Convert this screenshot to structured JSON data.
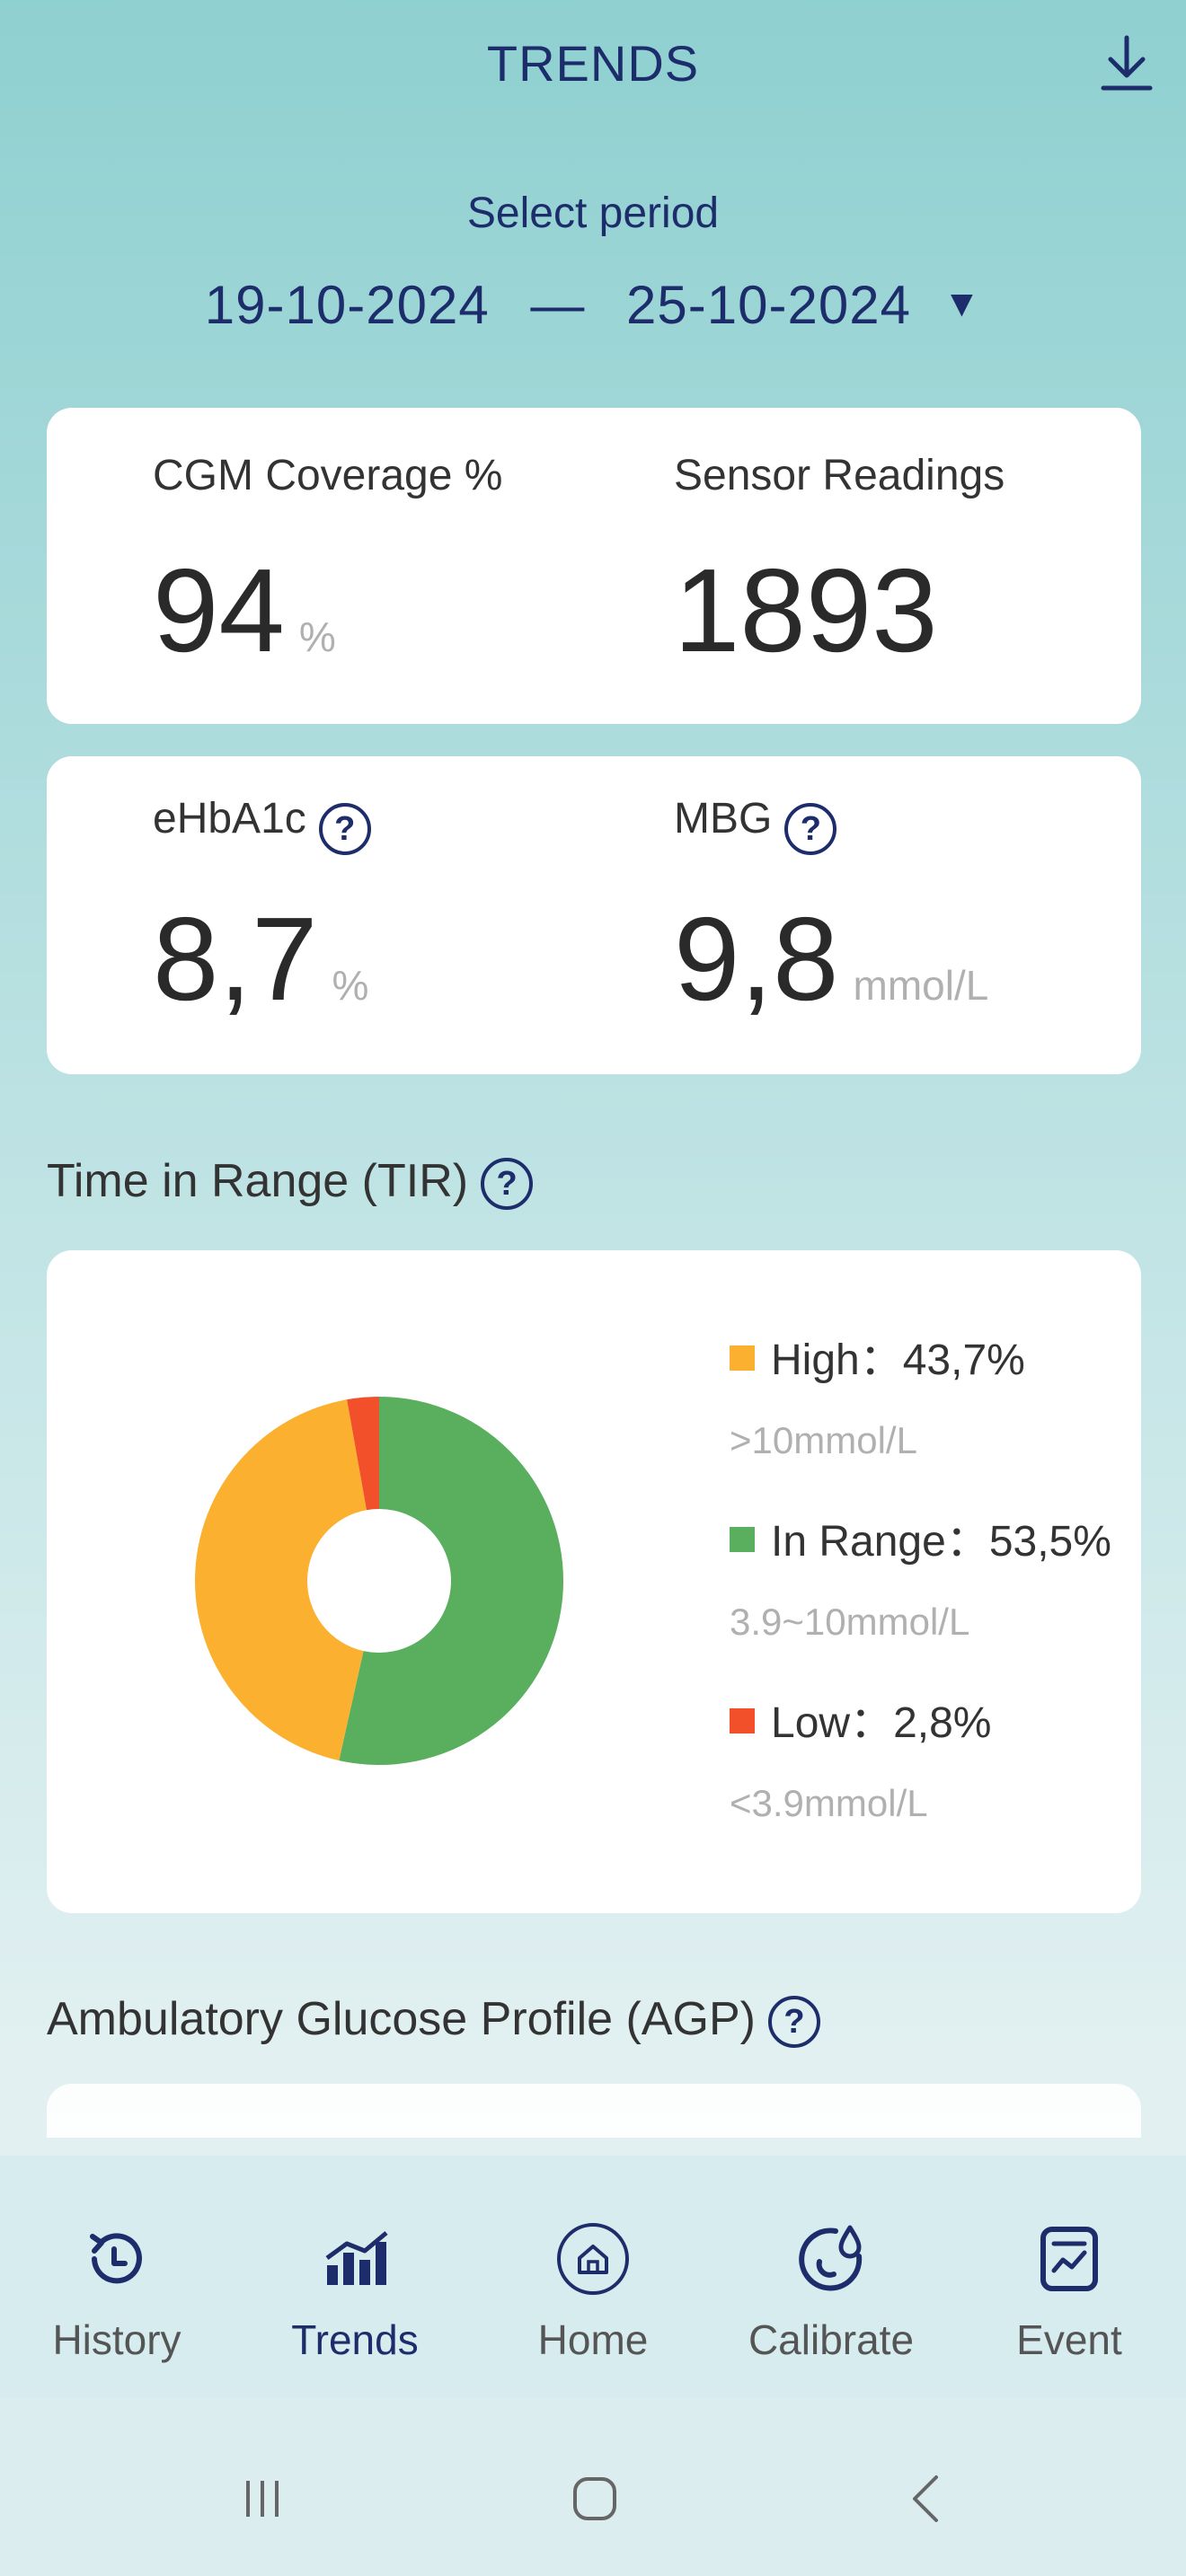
{
  "header": {
    "title": "TRENDS",
    "download_icon": "download-icon"
  },
  "period": {
    "label": "Select period",
    "start": "19-10-2024",
    "separator": "—",
    "end": "25-10-2024"
  },
  "metrics": {
    "cgm_coverage": {
      "label": "CGM Coverage %",
      "value": "94",
      "unit": "%"
    },
    "sensor_readings": {
      "label": "Sensor Readings",
      "value": "1893"
    },
    "ehba1c": {
      "label": "eHbA1c",
      "value": "8,7",
      "unit": "%"
    },
    "mbg": {
      "label": "MBG",
      "value": "9,8",
      "unit": "mmol/L"
    }
  },
  "tir": {
    "title": "Time in Range (TIR)",
    "legend": [
      {
        "label": "High：",
        "value": "43,7%",
        "range": ">10mmol/L",
        "color": "#fbb030"
      },
      {
        "label": "In Range：",
        "value": "53,5%",
        "range": "3.9~10mmol/L",
        "color": "#5aaf5f"
      },
      {
        "label": "Low：",
        "value": "2,8%",
        "range": "<3.9mmol/L",
        "color": "#f2502a"
      }
    ]
  },
  "chart_data": {
    "type": "pie",
    "categories": [
      "In Range",
      "High",
      "Low"
    ],
    "values": [
      53.5,
      43.7,
      2.8
    ],
    "colors": [
      "#5aaf5f",
      "#fbb030",
      "#f2502a"
    ]
  },
  "agp": {
    "title": "Ambulatory Glucose Profile (AGP)"
  },
  "nav": {
    "items": [
      {
        "label": "History",
        "icon": "history-icon"
      },
      {
        "label": "Trends",
        "icon": "trends-icon"
      },
      {
        "label": "Home",
        "icon": "home-icon"
      },
      {
        "label": "Calibrate",
        "icon": "calibrate-icon"
      },
      {
        "label": "Event",
        "icon": "event-icon"
      }
    ]
  },
  "colors": {
    "navy": "#1d2d6b",
    "accent_bg": "#8fd0d0"
  }
}
